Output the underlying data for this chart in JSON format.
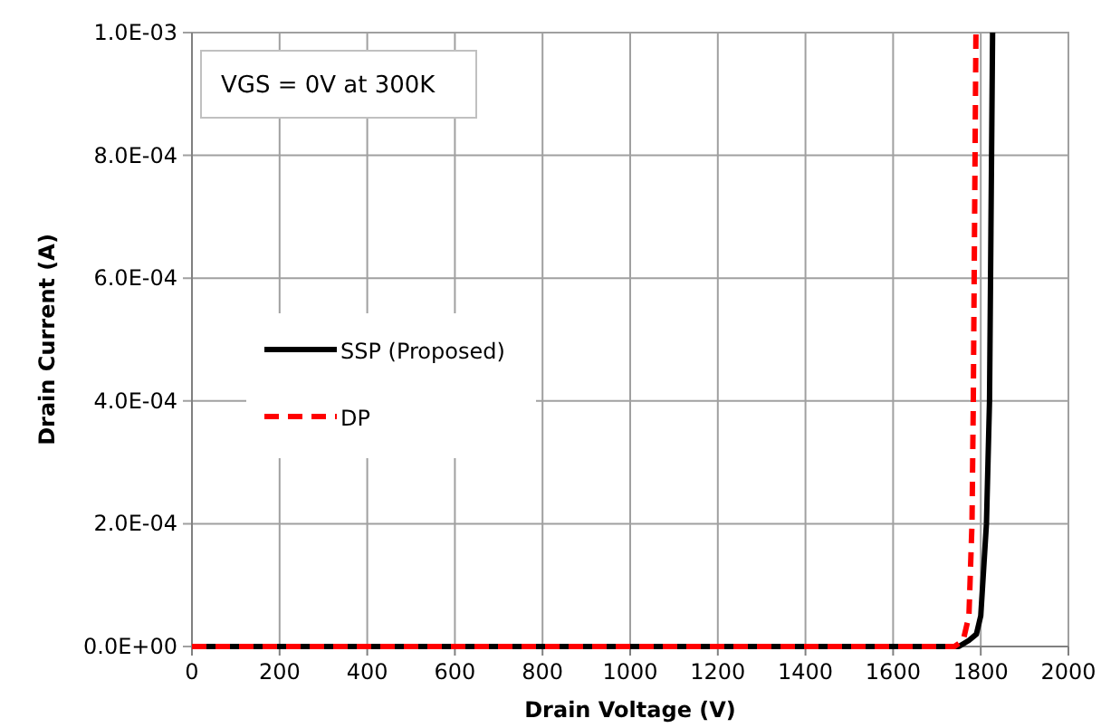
{
  "chart_data": {
    "type": "line",
    "xlabel": "Drain Voltage (V)",
    "ylabel": "Drain Current (A)",
    "annotations": [
      "VGS = 0V at 300K"
    ],
    "xlim": [
      0,
      2000
    ],
    "xticks": [
      0,
      200,
      400,
      600,
      800,
      1000,
      1200,
      1400,
      1600,
      1800,
      2000
    ],
    "ylim": [
      0,
      0.001
    ],
    "yticks": [
      {
        "value": 0,
        "label": "0.0E+00"
      },
      {
        "value": 0.0002,
        "label": "2.0E-04"
      },
      {
        "value": 0.0004,
        "label": "4.0E-04"
      },
      {
        "value": 0.0006,
        "label": "6.0E-04"
      },
      {
        "value": 0.0008,
        "label": "8.0E-04"
      },
      {
        "value": 0.001,
        "label": "1.0E-03"
      }
    ],
    "grid": true,
    "legend": "left",
    "marker": "none",
    "series": [
      {
        "name": "SSP (Proposed)",
        "color": "#000000",
        "line_style": "solid",
        "x": [
          0,
          1700,
          1750,
          1773,
          1790,
          1800,
          1813,
          1820,
          1827
        ],
        "values": [
          0,
          0,
          0,
          1e-05,
          2e-05,
          5e-05,
          0.0002,
          0.0004,
          0.001
        ]
      },
      {
        "name": "DP",
        "color": "#ff0000",
        "line_style": "dashed",
        "x": [
          0,
          1700,
          1740,
          1760,
          1773,
          1780,
          1783,
          1789
        ],
        "values": [
          0,
          0,
          0,
          1e-05,
          5e-05,
          0.0002,
          0.0004,
          0.001
        ]
      }
    ]
  }
}
